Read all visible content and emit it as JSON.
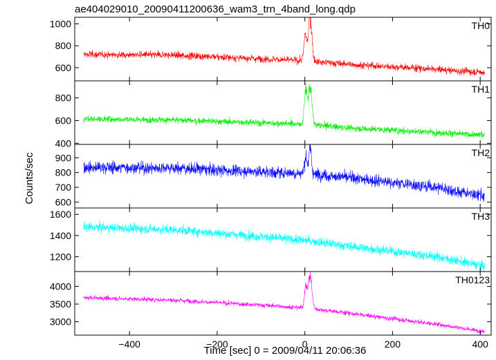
{
  "figure": {
    "title": "ae404029010_20090411200636_wam3_trn_4band_long.qdp",
    "ylabel": "Counts/sec",
    "xlabel": "Time [sec] 0 = 2009/04/11 20:06:36"
  },
  "chart_data": {
    "type": "line",
    "title": "ae404029010_20090411200636_wam3_trn_4band_long.qdp",
    "xlabel": "Time [sec] 0 = 2009/04/11 20:06:36",
    "ylabel": "Counts/sec",
    "xlim": [
      -525,
      425
    ],
    "xticks": [
      -400,
      -200,
      0,
      200,
      400
    ],
    "xticklabels": [
      "−400",
      "−200",
      "0",
      "200",
      "400"
    ],
    "grid": false,
    "panels": [
      {
        "name": "TH0",
        "color": "#ff0000",
        "ylim": [
          480,
          1060
        ],
        "yticks": [
          600,
          800,
          1000
        ],
        "yticklabels": [
          "600",
          "800",
          "1000"
        ],
        "baseline": {
          "x": [
            -505,
            -300,
            -100,
            0,
            100,
            300,
            410
          ],
          "y": [
            720,
            715,
            680,
            665,
            630,
            585,
            555
          ]
        },
        "noise": 30,
        "peaks": [
          {
            "t": 1,
            "height": 230,
            "width": 3
          },
          {
            "t": 12,
            "height": 400,
            "width": 4
          }
        ]
      },
      {
        "name": "TH1",
        "color": "#00ee00",
        "ylim": [
          390,
          950
        ],
        "yticks": [
          400,
          600,
          800
        ],
        "yticklabels": [
          "400",
          "600",
          "800"
        ],
        "baseline": {
          "x": [
            -505,
            -300,
            -100,
            0,
            100,
            300,
            410
          ],
          "y": [
            615,
            605,
            580,
            570,
            535,
            495,
            470
          ]
        },
        "noise": 27,
        "peaks": [
          {
            "t": 2,
            "height": 300,
            "width": 3
          },
          {
            "t": 12,
            "height": 330,
            "width": 4
          }
        ]
      },
      {
        "name": "TH2",
        "color": "#0000ff",
        "ylim": [
          560,
          990
        ],
        "yticks": [
          600,
          700,
          800,
          900
        ],
        "yticklabels": [
          "600",
          "700",
          "800",
          "900"
        ],
        "baseline": {
          "x": [
            -505,
            -300,
            -100,
            0,
            100,
            300,
            410
          ],
          "y": [
            835,
            830,
            805,
            795,
            765,
            700,
            640
          ]
        },
        "noise": 38,
        "peaks": [
          {
            "t": 2,
            "height": 110,
            "width": 3
          },
          {
            "t": 12,
            "height": 170,
            "width": 3
          }
        ]
      },
      {
        "name": "TH3",
        "color": "#00ffff",
        "ylim": [
          1060,
          1660
        ],
        "yticks": [
          1200,
          1400,
          1600
        ],
        "yticklabels": [
          "1200",
          "1400",
          "1600"
        ],
        "baseline": {
          "x": [
            -505,
            -300,
            -100,
            0,
            100,
            300,
            410
          ],
          "y": [
            1480,
            1455,
            1390,
            1355,
            1300,
            1200,
            1110
          ]
        },
        "noise": 42,
        "peaks": []
      },
      {
        "name": "TH0123",
        "color": "#ff00ff",
        "ylim": [
          2620,
          4420
        ],
        "yticks": [
          3000,
          3500,
          4000
        ],
        "yticklabels": [
          "3000",
          "3500",
          "4000"
        ],
        "baseline": {
          "x": [
            -505,
            -300,
            -100,
            0,
            100,
            300,
            410
          ],
          "y": [
            3680,
            3610,
            3470,
            3390,
            3240,
            2930,
            2720
          ]
        },
        "noise": 60,
        "peaks": [
          {
            "t": 2,
            "height": 600,
            "width": 3
          },
          {
            "t": 12,
            "height": 950,
            "width": 4
          }
        ]
      }
    ]
  }
}
